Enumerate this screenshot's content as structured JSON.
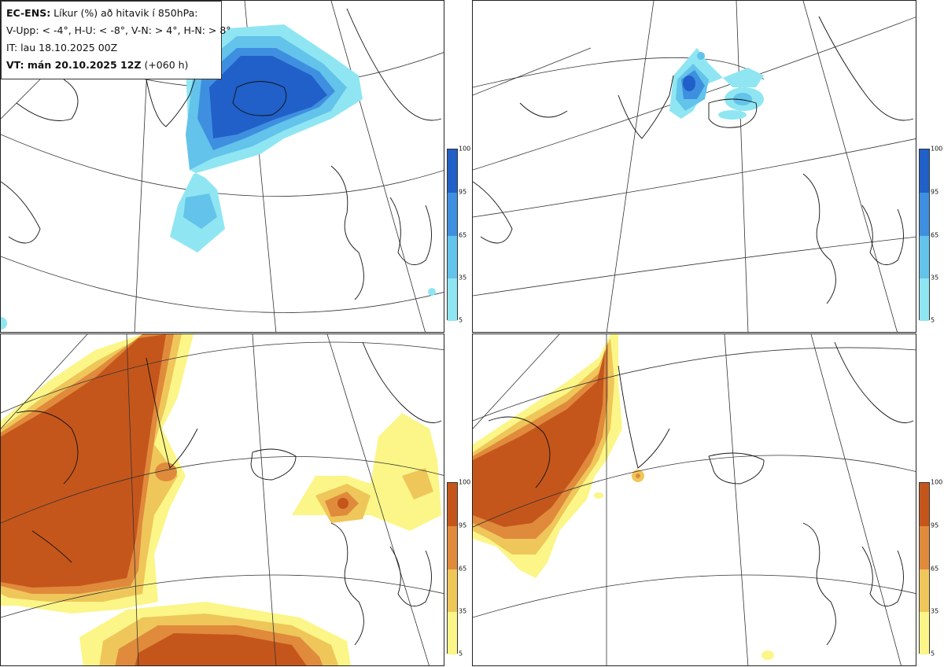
{
  "header": {
    "product": "EC-ENS:",
    "title_rest": " Líkur (%) að hitavik í 850hPa:",
    "legend_line": "V-Upp: < -4°, H-U: < -8°, V-N: > 4°, H-N: > 8°",
    "init_time": "IT: lau 18.10.2025 00Z",
    "valid_label": "VT: mán 20.10.2025 12Z",
    "lead": " (+060 h)"
  },
  "colorbars": {
    "ticks": [
      "100",
      "95",
      "65",
      "35",
      "5"
    ],
    "cold_colors": [
      "#2060c8",
      "#3f8fe0",
      "#63c3ea",
      "#8fe6f2"
    ],
    "warm_colors": [
      "#c5561b",
      "#e08a3c",
      "#efc65a",
      "#fbf687"
    ]
  },
  "panels": [
    {
      "id": "top-left",
      "anomaly": "V-Upp"
    },
    {
      "id": "top-right",
      "anomaly": "H-U"
    },
    {
      "id": "bottom-left",
      "anomaly": "V-N"
    },
    {
      "id": "bottom-right",
      "anomaly": "H-N"
    }
  ]
}
